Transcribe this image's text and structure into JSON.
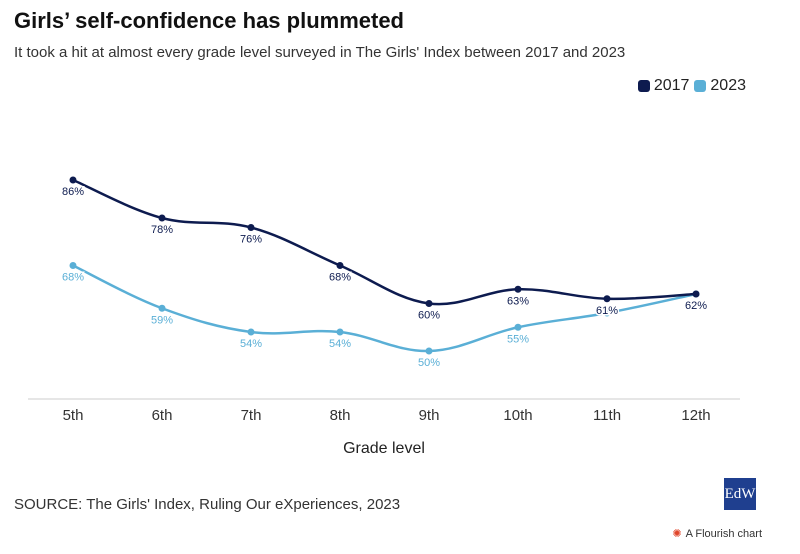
{
  "header": {
    "title": "Girls’ self-confidence has plummeted",
    "subtitle": "It took a hit at almost every grade level surveyed in The Girls' Index between 2017 and 2023"
  },
  "colors": {
    "2017": "#0d1b4f",
    "2023": "#5aafd6"
  },
  "chart_data": {
    "type": "line",
    "categories": [
      "5th",
      "6th",
      "7th",
      "8th",
      "9th",
      "10th",
      "11th",
      "12th"
    ],
    "series": [
      {
        "name": "2017",
        "values": [
          86,
          78,
          76,
          68,
          60,
          63,
          61,
          62
        ],
        "labels": [
          "86%",
          "78%",
          "76%",
          "68%",
          "60%",
          "63%",
          "61%",
          "62%"
        ]
      },
      {
        "name": "2023",
        "values": [
          68,
          59,
          54,
          54,
          50,
          55,
          58,
          62
        ],
        "labels": [
          "68%",
          "59%",
          "54%",
          "54%",
          "50%",
          "55%",
          "",
          ""
        ]
      }
    ],
    "xlabel": "Grade level",
    "ylabel": "",
    "ylim": [
      40,
      95
    ],
    "legend_position": "top-right",
    "grid": false
  },
  "footer": {
    "source": "SOURCE: The Girls' Index, Ruling Our eXperiences, 2023",
    "logo_text": "EdW",
    "flourish_label": "A Flourish chart",
    "flourish_icon": "flourish-star-icon"
  }
}
